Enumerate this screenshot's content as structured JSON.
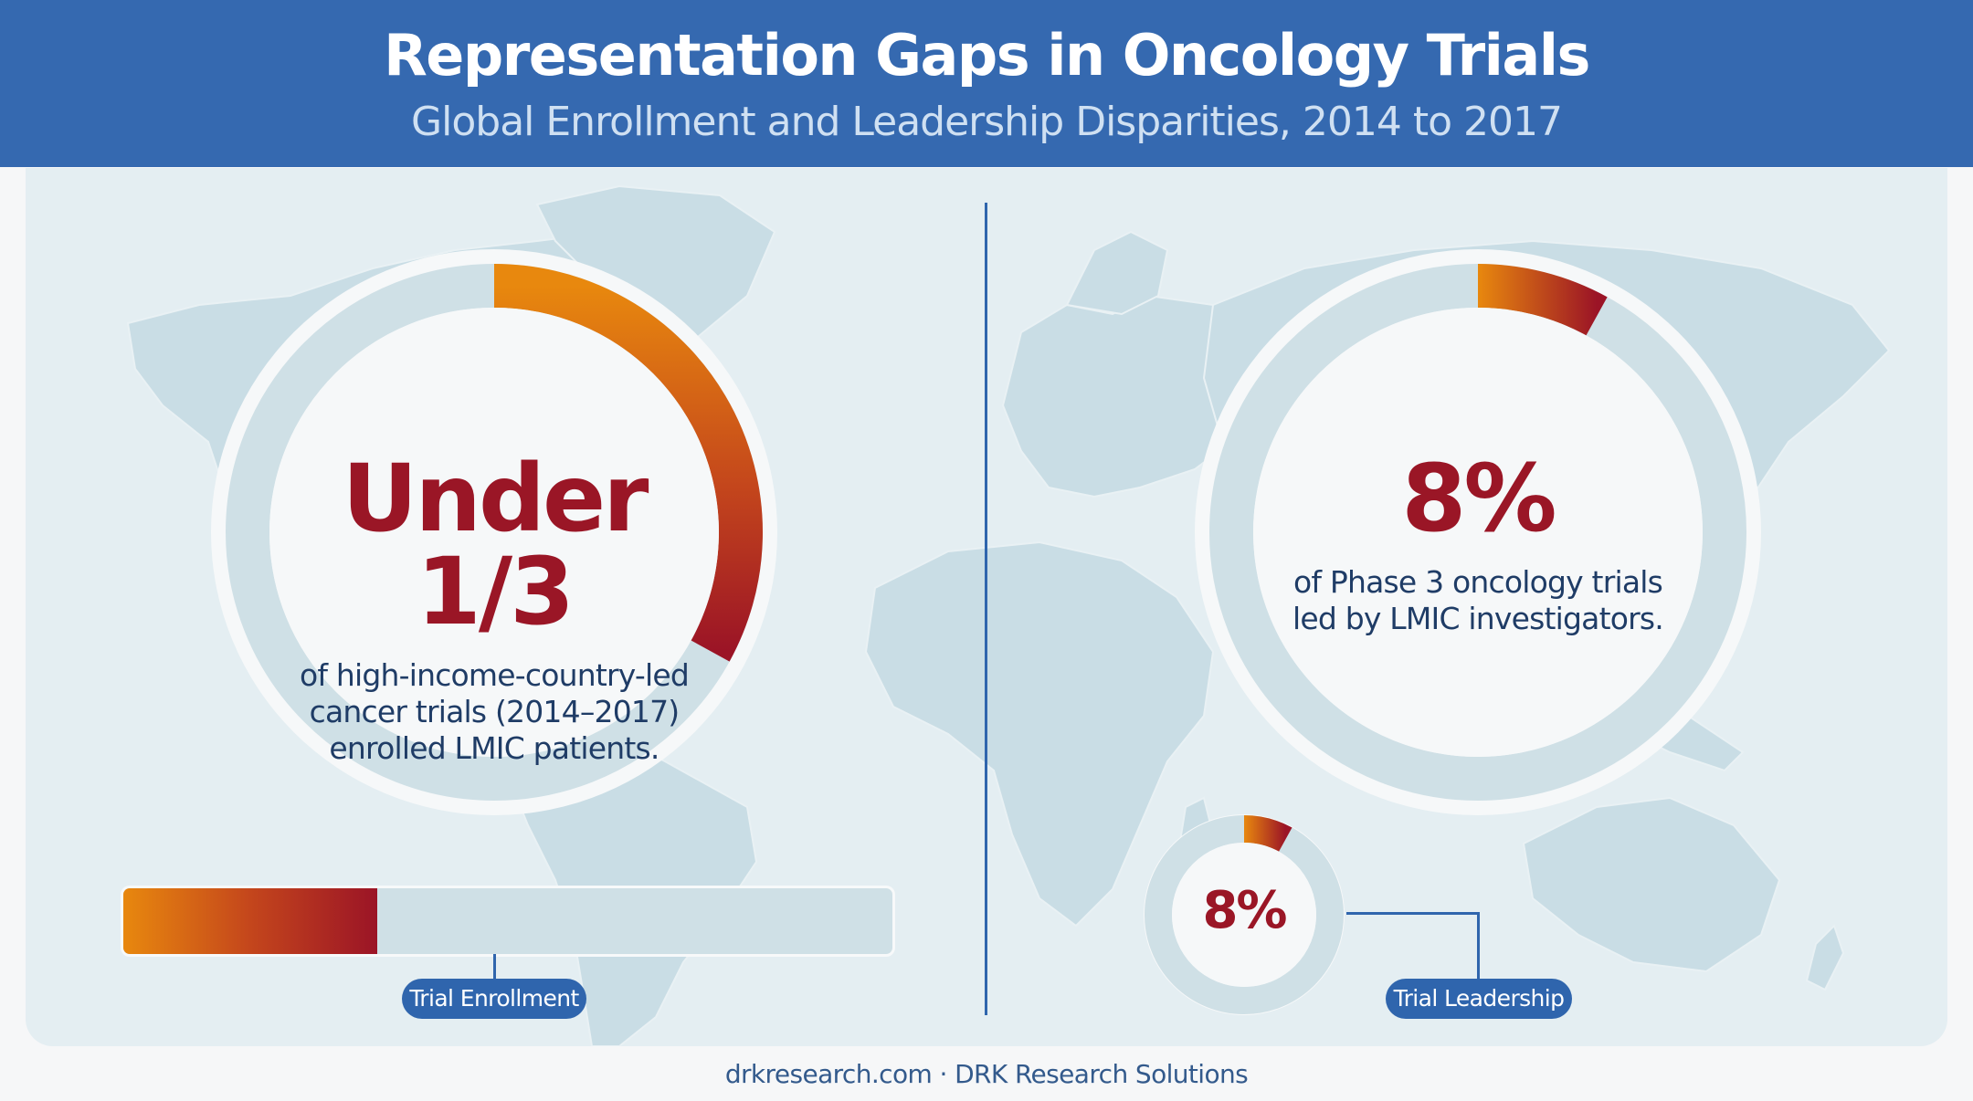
{
  "header": {
    "title": "Representation Gaps in Oncology Trials",
    "subtitle": "Global Enrollment and Leadership Disparities, 2014 to 2017"
  },
  "enrollment": {
    "headline": "Under 1/3",
    "description_lines": [
      "of high-income-country-led",
      "cancer trials (2014–2017)",
      "enrolled LMIC patients."
    ],
    "ring_fraction": 0.33,
    "bar_fraction": 0.33,
    "label": "Trial Enrollment"
  },
  "leadership": {
    "headline": "8%",
    "description_lines": [
      "of Phase 3 oncology trials",
      "led by LMIC investigators."
    ],
    "ring_fraction": 0.08,
    "small_ring_value": "8%",
    "small_ring_fraction": 0.08,
    "label": "Trial Leadership"
  },
  "footer": {
    "text": "drkresearch.com · DRK Research Solutions"
  },
  "colors": {
    "header_blue": "#3569b0",
    "accent_orange": "#e8880e",
    "accent_red": "#9b1426",
    "track": "#cfe0e6"
  }
}
